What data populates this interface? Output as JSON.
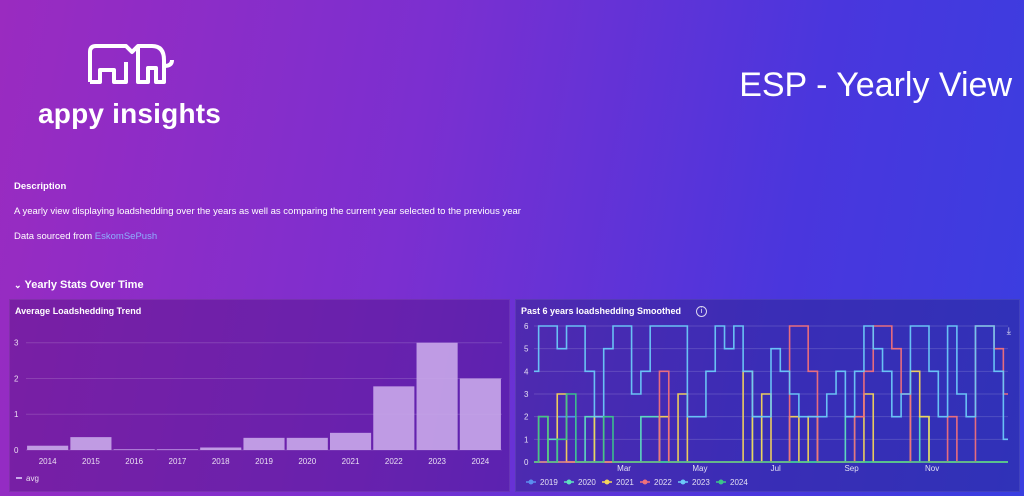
{
  "header": {
    "logo_text": "appy insights",
    "logo_icon": "elephant-icon",
    "title": "ESP - Yearly View"
  },
  "description": {
    "heading": "Description",
    "text": "A yearly view displaying loadshedding over the years as well as comparing the current year selected to the previous year",
    "source_prefix": "Data sourced from ",
    "source_link": "EskomSePush"
  },
  "section": {
    "label": "Yearly Stats Over Time",
    "chevron_icon": "chevron-down-icon"
  },
  "panels": {
    "left_title": "Average Loadshedding Trend",
    "right_title": "Past 6 years loadshedding Smoothed",
    "right_icons": [
      "info-icon",
      "download-icon"
    ]
  },
  "chart_data": [
    {
      "type": "bar",
      "title": "Average Loadshedding Trend",
      "categories": [
        "2014",
        "2015",
        "2016",
        "2017",
        "2018",
        "2019",
        "2020",
        "2021",
        "2022",
        "2023",
        "2024"
      ],
      "series": [
        {
          "name": "avg",
          "values": [
            0.12,
            0.36,
            0.02,
            0.02,
            0.07,
            0.34,
            0.34,
            0.48,
            1.78,
            3.0,
            2.0
          ]
        }
      ],
      "yticks": [
        0,
        1,
        2,
        3
      ],
      "ylim": [
        0,
        3.3
      ],
      "legend": "bottom-left",
      "color": "#c9a8ea"
    },
    {
      "type": "line",
      "title": "Past 6 years loadshedding Smoothed",
      "xticks": [
        "Mar",
        "May",
        "Jul",
        "Sep",
        "Nov"
      ],
      "yticks": [
        0,
        1,
        2,
        3,
        4,
        5,
        6
      ],
      "ylim": [
        0,
        6
      ],
      "legend": "bottom",
      "series": [
        {
          "name": "2019",
          "color": "#5b8def",
          "values": [
            0,
            0,
            0,
            2,
            2,
            0,
            0,
            0,
            0,
            0,
            0,
            0,
            0,
            0,
            0,
            0,
            0,
            0,
            0,
            0,
            0,
            0,
            0,
            0,
            0,
            0,
            0,
            0,
            0,
            0,
            0,
            0,
            0,
            0,
            0,
            0,
            0,
            0,
            0,
            0,
            0,
            0,
            0,
            0,
            0,
            0,
            0,
            0,
            0,
            0,
            0,
            0
          ]
        },
        {
          "name": "2020",
          "color": "#5fe0c0",
          "values": [
            0,
            0,
            1,
            0,
            0,
            0,
            2,
            0,
            0,
            0,
            0,
            0,
            2,
            2,
            0,
            0,
            0,
            0,
            0,
            0,
            0,
            0,
            0,
            0,
            2,
            0,
            0,
            0,
            0,
            0,
            0,
            0,
            0,
            0,
            2,
            0,
            0,
            0,
            0,
            0,
            0,
            0,
            2,
            0,
            0,
            0,
            0,
            0,
            0,
            0,
            0,
            0
          ]
        },
        {
          "name": "2021",
          "color": "#f3d45a",
          "values": [
            0,
            2,
            0,
            3,
            0,
            0,
            0,
            2,
            0,
            0,
            0,
            0,
            0,
            0,
            2,
            0,
            3,
            0,
            0,
            0,
            0,
            0,
            0,
            4,
            0,
            3,
            0,
            0,
            2,
            0,
            2,
            0,
            0,
            0,
            0,
            0,
            3,
            0,
            0,
            0,
            0,
            4,
            2,
            0,
            0,
            0,
            0,
            0,
            0,
            0,
            0,
            0
          ]
        },
        {
          "name": "2022",
          "color": "#f0707a",
          "values": [
            0,
            0,
            0,
            0,
            0,
            0,
            0,
            0,
            0,
            0,
            0,
            0,
            0,
            0,
            4,
            0,
            0,
            0,
            0,
            0,
            0,
            0,
            0,
            0,
            0,
            0,
            0,
            0,
            6,
            6,
            4,
            0,
            0,
            0,
            0,
            2,
            4,
            6,
            6,
            5,
            3,
            0,
            0,
            0,
            0,
            2,
            0,
            0,
            6,
            6,
            5,
            3
          ]
        },
        {
          "name": "2023",
          "color": "#6cc8f8",
          "values": [
            4,
            6,
            6,
            5,
            6,
            6,
            4,
            2,
            5,
            6,
            6,
            3,
            4,
            6,
            6,
            6,
            6,
            2,
            2,
            4,
            6,
            5,
            6,
            4,
            2,
            2,
            5,
            4,
            3,
            2,
            2,
            2,
            3,
            4,
            2,
            4,
            6,
            5,
            4,
            2,
            3,
            6,
            6,
            4,
            2,
            6,
            3,
            2,
            6,
            6,
            4,
            1
          ]
        },
        {
          "name": "2024",
          "color": "#3cc48a",
          "values": [
            0,
            2,
            0,
            1,
            3,
            0,
            0,
            0,
            2,
            0,
            0,
            0,
            0,
            0,
            0,
            0,
            0,
            0,
            0,
            0,
            0,
            0,
            0,
            0,
            0,
            0,
            0,
            0,
            0,
            0,
            0,
            0,
            0,
            0,
            0,
            0,
            0,
            0,
            0,
            0,
            0,
            0,
            0,
            0,
            0,
            0,
            0,
            0,
            0,
            0,
            0,
            0
          ]
        }
      ]
    }
  ]
}
